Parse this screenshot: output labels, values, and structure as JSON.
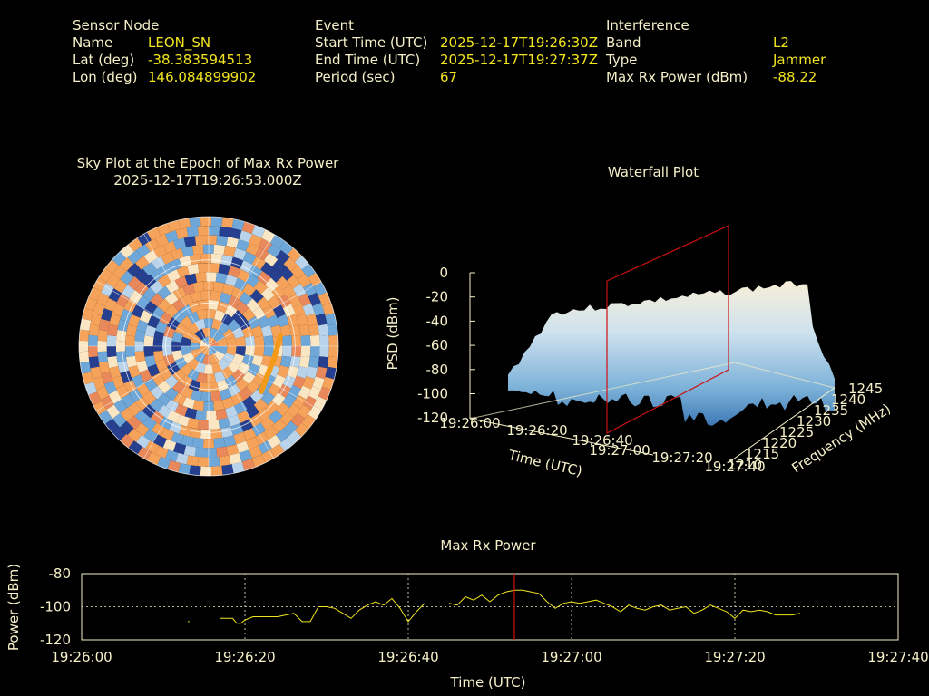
{
  "header": {
    "sensor_node": {
      "title": "Sensor Node",
      "rows": [
        {
          "label": "Name",
          "value": "LEON_SN"
        },
        {
          "label": "Lat (deg)",
          "value": "-38.383594513"
        },
        {
          "label": "Lon (deg)",
          "value": "146.084899902"
        }
      ]
    },
    "event": {
      "title": "Event",
      "rows": [
        {
          "label": "Start Time (UTC)",
          "value": "2025-12-17T19:26:30Z"
        },
        {
          "label": "End Time (UTC)",
          "value": "2025-12-17T19:27:37Z"
        },
        {
          "label": "Period (sec)",
          "value": "67"
        }
      ]
    },
    "interference": {
      "title": "Interference",
      "rows": [
        {
          "label": "Band",
          "value": "L2"
        },
        {
          "label": "Type",
          "value": "Jammer"
        },
        {
          "label": "Max Rx Power (dBm)",
          "value": "-88.22"
        }
      ]
    }
  },
  "sky_plot": {
    "title_line1": "Sky Plot at the Epoch of Max Rx Power",
    "title_line2": "2025-12-17T19:26:53.000Z",
    "colors": {
      "warm": "#f5a25a",
      "cool": "#6fa8d8",
      "dark": "#26408f",
      "pale": "#fbe6c4",
      "track": "#f39a1a"
    }
  },
  "waterfall": {
    "title": "Waterfall Plot",
    "ylabel": "PSD (dBm)",
    "xlabel": "Time (UTC)",
    "flabel": "Frequency (MHz)",
    "psd_ticks": [
      "0",
      "-20",
      "-40",
      "-60",
      "-80",
      "-100",
      "-120"
    ],
    "time_ticks": [
      "19:26:00",
      "19:26:20",
      "19:26:40",
      "19:27:00",
      "19:27:20",
      "19:27:40"
    ],
    "freq_ticks": [
      "1210",
      "1215",
      "1220",
      "1225",
      "1230",
      "1235",
      "1240",
      "1245"
    ],
    "marker_color": "#cc1111"
  },
  "chart_data": {
    "type": "line",
    "title": "Max Rx Power",
    "xlabel": "Time (UTC)",
    "ylabel": "Power (dBm)",
    "xlim": [
      "19:26:00",
      "19:27:40"
    ],
    "ylim": [
      -120,
      -80
    ],
    "x_ticks": [
      "19:26:00",
      "19:26:20",
      "19:26:40",
      "19:27:00",
      "19:27:20",
      "19:27:40"
    ],
    "y_ticks": [
      "-80",
      "-100",
      "-120"
    ],
    "grid": true,
    "line_color": "#f2e51f",
    "marker": {
      "time": "19:26:53",
      "color": "#cc1111"
    },
    "segments": [
      [
        [
          13,
          -109
        ],
        [
          13.2,
          -109
        ]
      ],
      [
        [
          17,
          -107
        ],
        [
          17.5,
          -107
        ],
        [
          18.5,
          -107
        ],
        [
          19,
          -110
        ],
        [
          19.5,
          -110
        ],
        [
          20,
          -108
        ],
        [
          21,
          -106
        ],
        [
          22,
          -106
        ],
        [
          24,
          -106
        ],
        [
          25,
          -105
        ],
        [
          26,
          -104
        ],
        [
          27,
          -109
        ],
        [
          28,
          -109
        ],
        [
          29,
          -100
        ],
        [
          30,
          -100
        ],
        [
          31,
          -101
        ],
        [
          32,
          -104
        ],
        [
          33,
          -107
        ],
        [
          34,
          -102
        ],
        [
          35,
          -99
        ],
        [
          36,
          -97
        ],
        [
          37,
          -99
        ],
        [
          38,
          -95
        ],
        [
          39,
          -101
        ],
        [
          40,
          -109
        ],
        [
          41,
          -103
        ],
        [
          42,
          -98
        ]
      ],
      [
        [
          45,
          -98
        ],
        [
          46,
          -99
        ],
        [
          47,
          -94
        ],
        [
          48,
          -96
        ],
        [
          49,
          -93
        ],
        [
          50,
          -97
        ],
        [
          51,
          -93
        ],
        [
          52,
          -91
        ],
        [
          53,
          -90
        ],
        [
          54,
          -90
        ],
        [
          55,
          -91
        ],
        [
          56,
          -92
        ],
        [
          57,
          -97
        ],
        [
          58,
          -101
        ],
        [
          59,
          -98
        ],
        [
          60,
          -97
        ],
        [
          61,
          -98
        ],
        [
          62,
          -97
        ],
        [
          63,
          -96
        ],
        [
          64,
          -98
        ],
        [
          65,
          -100
        ],
        [
          66,
          -103
        ],
        [
          67,
          -99
        ],
        [
          68,
          -101
        ],
        [
          69,
          -102
        ],
        [
          70,
          -100
        ],
        [
          71,
          -99
        ],
        [
          72,
          -102
        ],
        [
          73,
          -101
        ],
        [
          74,
          -100
        ],
        [
          75,
          -104
        ],
        [
          76,
          -102
        ],
        [
          77,
          -99
        ],
        [
          78,
          -101
        ],
        [
          79,
          -103
        ],
        [
          80,
          -107
        ],
        [
          81,
          -102
        ],
        [
          82,
          -103
        ],
        [
          83,
          -102
        ],
        [
          84,
          -103
        ],
        [
          85,
          -105
        ],
        [
          86,
          -105
        ],
        [
          87,
          -105
        ],
        [
          88,
          -104
        ]
      ]
    ]
  }
}
